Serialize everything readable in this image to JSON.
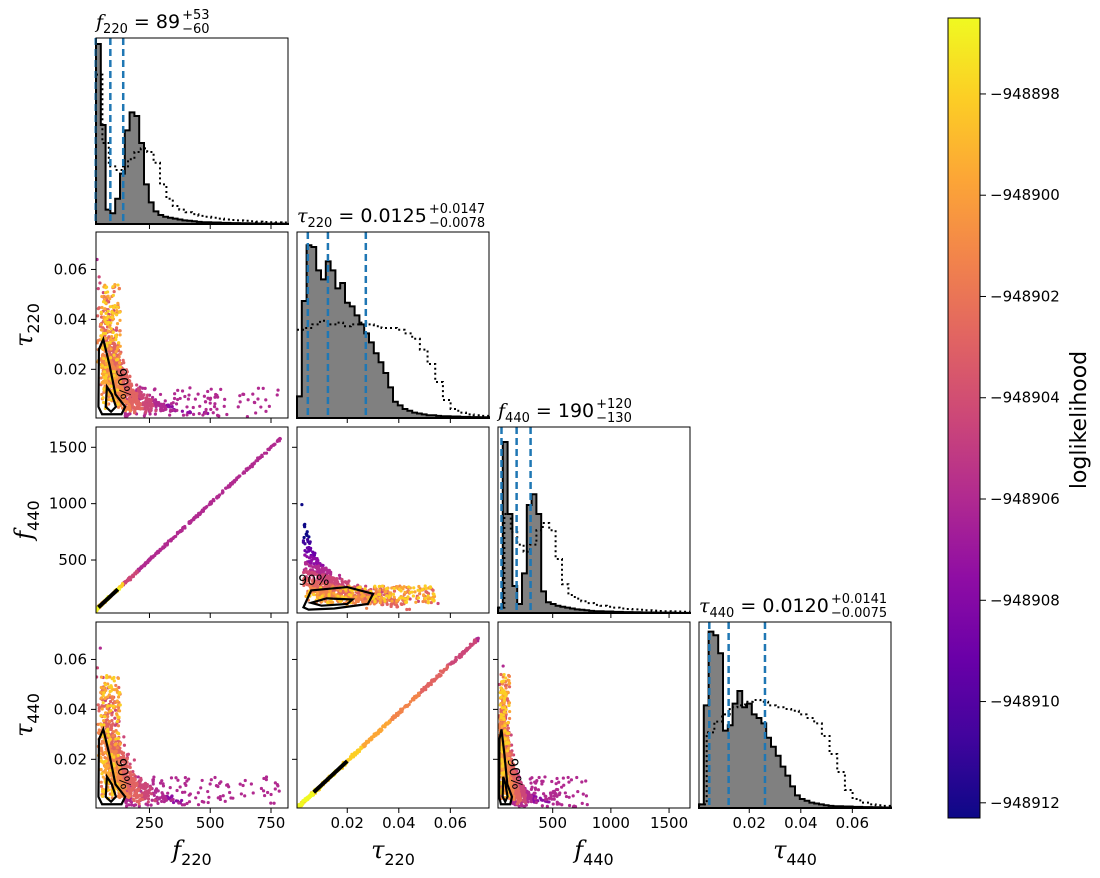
{
  "colors": {
    "hist_fill": "#808080",
    "hist_edge": "#000000",
    "quantile_line": "#1f77b4",
    "contour_line": "#000000",
    "colormap": [
      "#0d0887",
      "#41049d",
      "#6a00a8",
      "#8f0da4",
      "#b12a90",
      "#cc4778",
      "#e16462",
      "#f2844b",
      "#fca636",
      "#fcce25",
      "#f0f921"
    ]
  },
  "colorbar": {
    "label": "loglikelihood",
    "range": [
      -948912.3,
      -948896.5
    ],
    "ticks": [
      {
        "value": -948898,
        "label": "−948898"
      },
      {
        "value": -948900,
        "label": "−948900"
      },
      {
        "value": -948902,
        "label": "−948902"
      },
      {
        "value": -948904,
        "label": "−948904"
      },
      {
        "value": -948906,
        "label": "−948906"
      },
      {
        "value": -948908,
        "label": "−948908"
      },
      {
        "value": -948910,
        "label": "−948910"
      },
      {
        "value": -948912,
        "label": "−948912"
      }
    ]
  },
  "contour_label": "90%",
  "chart_data": {
    "type": "corner",
    "parameters": [
      {
        "symbol": "f",
        "sub": "220",
        "range": [
          30,
          820
        ],
        "ticks": [
          {
            "v": 250,
            "label": "250"
          },
          {
            "v": 500,
            "label": "500"
          },
          {
            "v": 750,
            "label": "750"
          }
        ],
        "title": {
          "median": "89",
          "plus": "+53",
          "minus": "−60"
        },
        "quantiles": [
          29,
          89,
          142
        ]
      },
      {
        "symbol": "τ",
        "sub": "220",
        "range": [
          0.0005,
          0.075
        ],
        "ticks": [
          {
            "v": 0.02,
            "label": "0.02"
          },
          {
            "v": 0.04,
            "label": "0.04"
          },
          {
            "v": 0.06,
            "label": "0.06"
          }
        ],
        "title": {
          "median": "0.0125",
          "plus": "+0.0147",
          "minus": "−0.0078"
        },
        "quantiles": [
          0.0047,
          0.0125,
          0.0272
        ]
      },
      {
        "symbol": "f",
        "sub": "440",
        "range": [
          30,
          1680
        ],
        "ticks": [
          {
            "v": 500,
            "label": "500"
          },
          {
            "v": 1000,
            "label": "1000"
          },
          {
            "v": 1500,
            "label": "1500"
          }
        ],
        "yticks": [
          {
            "v": 500,
            "label": "500"
          },
          {
            "v": 1000,
            "label": "1000"
          },
          {
            "v": 1500,
            "label": "1500"
          }
        ],
        "title": {
          "median": "190",
          "plus": "+120",
          "minus": "−130"
        },
        "quantiles": [
          60,
          190,
          310
        ]
      },
      {
        "symbol": "τ",
        "sub": "440",
        "range": [
          0.0005,
          0.075
        ],
        "ticks": [
          {
            "v": 0.02,
            "label": "0.02"
          },
          {
            "v": 0.04,
            "label": "0.04"
          },
          {
            "v": 0.06,
            "label": "0.06"
          }
        ],
        "yticks": [
          {
            "v": 0.02,
            "label": "0.02"
          },
          {
            "v": 0.04,
            "label": "0.04"
          },
          {
            "v": 0.06,
            "label": "0.06"
          }
        ],
        "title": {
          "median": "0.0120",
          "plus": "+0.0141",
          "minus": "−0.0075"
        },
        "quantiles": [
          0.0045,
          0.012,
          0.0261
        ]
      }
    ],
    "ytick_tau220": [
      {
        "v": 0.02,
        "label": "0.02"
      },
      {
        "v": 0.04,
        "label": "0.04"
      },
      {
        "v": 0.06,
        "label": "0.06"
      }
    ],
    "hist_heights": {
      "f220": [
        1.0,
        0.55,
        0.08,
        0.06,
        0.14,
        0.28,
        0.52,
        0.62,
        0.6,
        0.45,
        0.22,
        0.12,
        0.07,
        0.05,
        0.04,
        0.035,
        0.03,
        0.025,
        0.02,
        0.018,
        0.015,
        0.012,
        0.01,
        0.01,
        0.008,
        0.008,
        0.006,
        0.006,
        0.005,
        0.005,
        0.004,
        0.004,
        0.003,
        0.003,
        0.003,
        0.002,
        0.002,
        0.002,
        0.002,
        0.001
      ],
      "tau220": [
        0.12,
        0.65,
        0.96,
        0.95,
        0.82,
        0.77,
        0.87,
        0.82,
        0.72,
        0.75,
        0.64,
        0.62,
        0.57,
        0.52,
        0.47,
        0.42,
        0.36,
        0.31,
        0.25,
        0.17,
        0.09,
        0.07,
        0.05,
        0.04,
        0.03,
        0.025,
        0.02,
        0.015,
        0.015,
        0.012,
        0.01,
        0.01,
        0.008,
        0.008,
        0.006,
        0.006,
        0.005,
        0.005,
        0.004,
        0.004
      ],
      "f440": [
        0.03,
        0.95,
        0.55,
        0.15,
        0.05,
        0.22,
        0.6,
        0.66,
        0.55,
        0.12,
        0.06,
        0.05,
        0.04,
        0.035,
        0.03,
        0.025,
        0.02,
        0.018,
        0.015,
        0.012,
        0.01,
        0.01,
        0.008,
        0.008,
        0.006,
        0.006,
        0.005,
        0.005,
        0.004,
        0.004,
        0.003,
        0.003,
        0.003,
        0.002,
        0.002,
        0.002,
        0.002,
        0.001,
        0.001,
        0.001
      ],
      "tau440": [
        0.02,
        0.57,
        0.98,
        0.96,
        0.86,
        0.43,
        0.46,
        0.58,
        0.65,
        0.56,
        0.58,
        0.52,
        0.5,
        0.47,
        0.39,
        0.34,
        0.29,
        0.23,
        0.18,
        0.12,
        0.07,
        0.05,
        0.04,
        0.03,
        0.025,
        0.02,
        0.015,
        0.012,
        0.01,
        0.01,
        0.008,
        0.008,
        0.006,
        0.006,
        0.005,
        0.005,
        0.004,
        0.004,
        0.003,
        0.003
      ]
    },
    "prior_heights": {
      "f220": [
        0.83,
        0.45,
        0.32,
        0.3,
        0.32,
        0.36,
        0.4,
        0.42,
        0.4,
        0.34,
        0.22,
        0.14,
        0.1,
        0.08,
        0.065,
        0.055,
        0.045,
        0.04,
        0.035,
        0.03,
        0.025,
        0.022,
        0.02,
        0.018,
        0.015,
        0.013,
        0.011,
        0.01,
        0.009,
        0.008
      ],
      "tau220": [
        0.49,
        0.5,
        0.52,
        0.54,
        0.52,
        0.53,
        0.51,
        0.52,
        0.53,
        0.52,
        0.51,
        0.5,
        0.5,
        0.49,
        0.47,
        0.44,
        0.38,
        0.3,
        0.2,
        0.1,
        0.05,
        0.03,
        0.02,
        0.015,
        0.012
      ],
      "f440": [
        0.03,
        0.55,
        0.45,
        0.38,
        0.34,
        0.38,
        0.46,
        0.5,
        0.46,
        0.3,
        0.16,
        0.1,
        0.08,
        0.065,
        0.055,
        0.045,
        0.04,
        0.035,
        0.03,
        0.025,
        0.022,
        0.02,
        0.018,
        0.015,
        0.013,
        0.011,
        0.01,
        0.009,
        0.008,
        0.007
      ],
      "tau440": [
        0.02,
        0.42,
        0.48,
        0.52,
        0.56,
        0.57,
        0.59,
        0.6,
        0.59,
        0.57,
        0.56,
        0.55,
        0.54,
        0.52,
        0.5,
        0.47,
        0.4,
        0.3,
        0.2,
        0.1,
        0.05,
        0.03,
        0.02,
        0.015,
        0.012
      ]
    }
  }
}
